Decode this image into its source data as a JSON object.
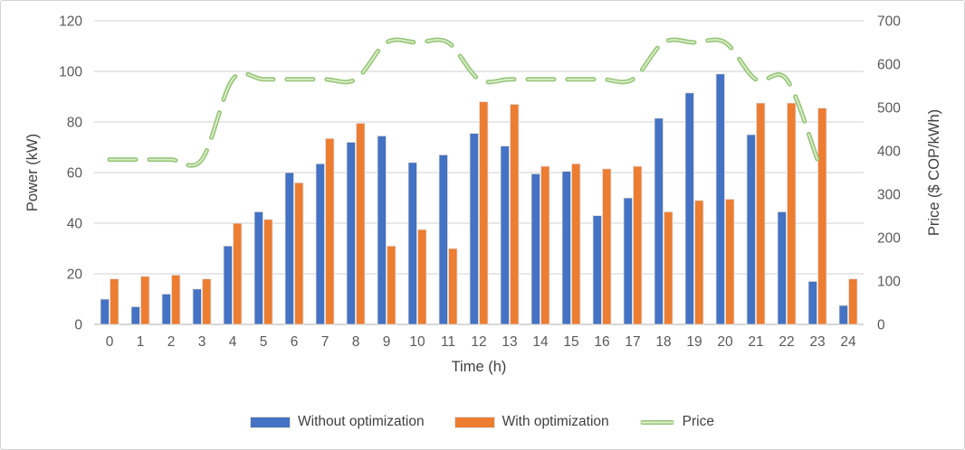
{
  "figure": {
    "type_note": "combo bar and line chart, no title, legend at bottom"
  },
  "chart_data": {
    "type": "bar",
    "combo": "bar+line",
    "categories": [
      "0",
      "1",
      "2",
      "3",
      "4",
      "5",
      "6",
      "7",
      "8",
      "9",
      "10",
      "11",
      "12",
      "13",
      "14",
      "15",
      "16",
      "17",
      "18",
      "19",
      "20",
      "21",
      "22",
      "23",
      "24"
    ],
    "series": [
      {
        "name": "Without optimization",
        "type": "bar",
        "axis": "left",
        "color": "#4472C4",
        "values": [
          10,
          7,
          12,
          14,
          31,
          44.5,
          60,
          63.5,
          72,
          74.5,
          64,
          67,
          75.5,
          70.5,
          59.5,
          60.5,
          43,
          50,
          81.5,
          91.5,
          99,
          75,
          44.5,
          17,
          7.5
        ]
      },
      {
        "name": "With optimization",
        "type": "bar",
        "axis": "left",
        "color": "#ED7D31",
        "values": [
          18,
          19,
          19.5,
          18,
          40,
          41.5,
          56,
          73.5,
          79.5,
          31,
          37.5,
          30,
          88,
          87,
          62.5,
          63.5,
          61.5,
          62.5,
          44.5,
          49,
          49.5,
          87.5,
          87.5,
          85.5,
          18
        ]
      },
      {
        "name": "Price",
        "type": "line",
        "line_style": "dashed-smooth",
        "axis": "right",
        "color": "#96C578",
        "color_inner": "#DCEDCA",
        "x": [
          0,
          1,
          2,
          3,
          4,
          5,
          6,
          7,
          8,
          9,
          10,
          11,
          12,
          13,
          14,
          15,
          16,
          17,
          18,
          19,
          20,
          21,
          22,
          23
        ],
        "values": [
          380,
          380,
          380,
          380,
          565,
          565,
          565,
          565,
          565,
          650,
          650,
          650,
          565,
          565,
          565,
          565,
          565,
          565,
          650,
          650,
          650,
          565,
          565,
          380
        ]
      }
    ],
    "left_axis": {
      "label": "Power  (kW)",
      "min": 0,
      "max": 120,
      "step": 20,
      "ticks": [
        "0",
        "20",
        "40",
        "60",
        "80",
        "100",
        "120"
      ]
    },
    "right_axis": {
      "label": "Price ($ COP/kWh)",
      "min": 0,
      "max": 700,
      "step": 100,
      "ticks": [
        "0",
        "100",
        "200",
        "300",
        "400",
        "500",
        "600",
        "700"
      ]
    },
    "x_axis": {
      "label": "Time (h)"
    },
    "grid": true,
    "gridline_color": "#D9D9D9",
    "baseline_color": "#BFBFBF",
    "tick_text_color": "#595959",
    "axis_title_color": "#404040",
    "legend_position": "bottom"
  }
}
